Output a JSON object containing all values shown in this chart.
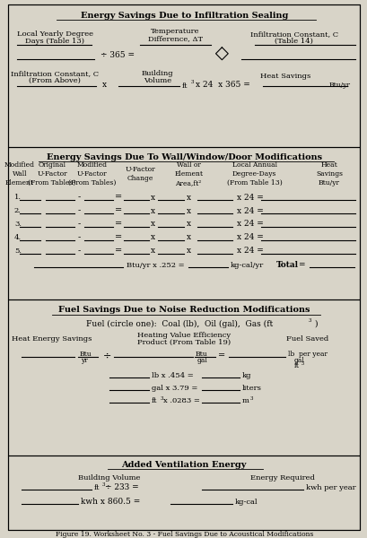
{
  "title": "Figure 19. Worksheet No. 3 - Fuel Savings Due to Acoustical Modifications",
  "bg_color": "#d8d4c8",
  "section1_title": "Energy Savings Due to Infiltration Sealing",
  "section2_title": "Energy Savings Due To Wall/Window/Door Modifications",
  "section3_title": "Fuel Savings Due to Noise Reduction Modifications",
  "section4_title": "Added Ventilation Energy"
}
